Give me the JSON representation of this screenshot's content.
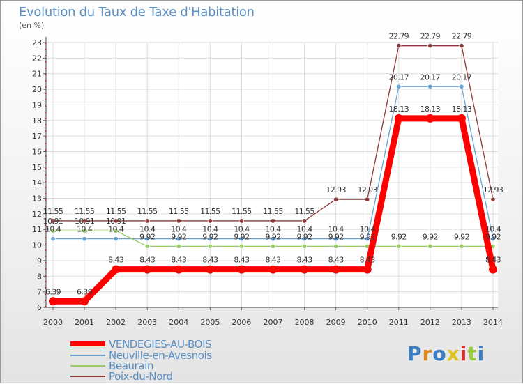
{
  "header": {
    "title": "Evolution du Taux de Taxe d'Habitation",
    "subtitle": "(en %)"
  },
  "logo": {
    "text": "Proxiti"
  },
  "chart_data": {
    "type": "line",
    "title": "Evolution du Taux de Taxe d'Habitation",
    "ylabel": "(en %)",
    "xlabel": "",
    "ylim": [
      6,
      23
    ],
    "yticks": [
      6,
      7,
      8,
      9,
      10,
      11,
      12,
      13,
      14,
      15,
      16,
      17,
      18,
      19,
      20,
      21,
      22,
      23
    ],
    "x": [
      "2000",
      "2001",
      "2002",
      "2003",
      "2004",
      "2005",
      "2006",
      "2007",
      "2008",
      "2009",
      "2010",
      "2011",
      "2012",
      "2013",
      "2014"
    ],
    "grid": true,
    "legend_position": "bottom-left",
    "series": [
      {
        "name": "VENDEGIES-AU-BOIS",
        "color": "#ff0000",
        "values": [
          6.39,
          6.39,
          8.43,
          8.43,
          8.43,
          8.43,
          8.43,
          8.43,
          8.43,
          8.43,
          8.43,
          18.13,
          18.13,
          18.13,
          8.43
        ],
        "labels": [
          "6.39",
          "6.39",
          "8.43",
          "8.43",
          "8.43",
          "8.43",
          "8.43",
          "8.43",
          "8.43",
          "8.43",
          "8.43",
          "18.13",
          "18.13",
          "18.13",
          "8.43"
        ]
      },
      {
        "name": "Neuville-en-Avesnois",
        "color": "#6ba3d6",
        "values": [
          10.4,
          10.4,
          10.4,
          10.4,
          10.4,
          10.4,
          10.4,
          10.4,
          10.4,
          10.4,
          10.4,
          20.17,
          20.17,
          20.17,
          10.4
        ],
        "labels": [
          "10.4",
          "10.4",
          "10.4",
          "10.4",
          "10.4",
          "10.4",
          "10.4",
          "10.4",
          "10.4",
          "10.4",
          "10.4",
          "20.17",
          "20.17",
          "20.17",
          "10.4"
        ]
      },
      {
        "name": "Beaurain",
        "color": "#9acd6a",
        "values": [
          10.91,
          10.91,
          10.91,
          9.92,
          9.92,
          9.92,
          9.92,
          9.92,
          9.92,
          9.92,
          9.92,
          9.92,
          9.92,
          9.92,
          9.92
        ],
        "labels": [
          "10.91",
          "10.91",
          "10.91",
          "9.92",
          "9.92",
          "9.92",
          "9.92",
          "9.92",
          "9.92",
          "9.92",
          "9.92",
          "9.92",
          "9.92",
          "9.92",
          "9.92"
        ]
      },
      {
        "name": "Poix-du-Nord",
        "color": "#8b3a3a",
        "values": [
          11.55,
          11.55,
          11.55,
          11.55,
          11.55,
          11.55,
          11.55,
          11.55,
          11.55,
          12.93,
          12.93,
          22.79,
          22.79,
          22.79,
          12.93
        ],
        "labels": [
          "11.55",
          "11.55",
          "11.55",
          "11.55",
          "11.55",
          "11.55",
          "11.55",
          "11.55",
          "11.55",
          "12.93",
          "12.93",
          "22.79",
          "22.79",
          "22.79",
          "12.93"
        ]
      }
    ]
  }
}
